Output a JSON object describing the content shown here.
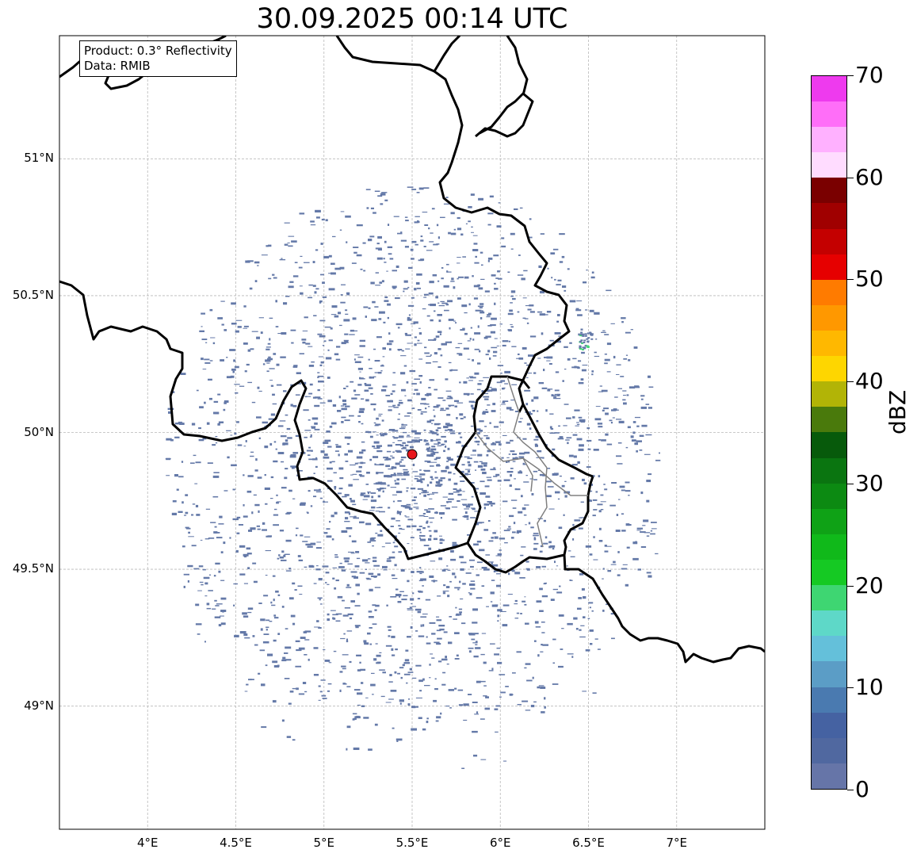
{
  "title": "30.09.2025 00:14 UTC",
  "info": {
    "product": "Product: 0.3° Reflectivity",
    "data": "Data: RMIB"
  },
  "map": {
    "extent_lon": [
      3.5,
      7.5
    ],
    "extent_lat": [
      48.55,
      51.45
    ],
    "lat_ticks": [
      {
        "value": 51.0,
        "label": "51°N"
      },
      {
        "value": 50.5,
        "label": "50.5°N"
      },
      {
        "value": 50.0,
        "label": "50°N"
      },
      {
        "value": 49.5,
        "label": "49.5°N"
      },
      {
        "value": 49.0,
        "label": "49°N"
      }
    ],
    "lon_ticks": [
      {
        "value": 4.0,
        "label": "4°E"
      },
      {
        "value": 4.5,
        "label": "4.5°E"
      },
      {
        "value": 5.0,
        "label": "5°E"
      },
      {
        "value": 5.5,
        "label": "5.5°E"
      },
      {
        "value": 6.0,
        "label": "6°E"
      },
      {
        "value": 6.5,
        "label": "6.5°E"
      },
      {
        "value": 7.0,
        "label": "7°E"
      }
    ],
    "radar_site": {
      "lon": 5.5,
      "lat": 49.92,
      "color": "#e8161b"
    },
    "gridlines": true,
    "echo_color": "#6479a8"
  },
  "colorbar": {
    "unit": "dBZ",
    "min": 0,
    "max": 70,
    "step": 2.5,
    "tick_values": [
      "0",
      "10",
      "20",
      "30",
      "40",
      "50",
      "60",
      "70"
    ],
    "colors": [
      "#6675a8",
      "#5068a0",
      "#4562a2",
      "#4a7ab0",
      "#5b9dc6",
      "#64c0da",
      "#5ed8c8",
      "#3ed672",
      "#15c923",
      "#10b91a",
      "#0fa216",
      "#0c8a12",
      "#0a7510",
      "#075a0b",
      "#4a7a0c",
      "#b2b406",
      "#fed600",
      "#ffb800",
      "#ff9800",
      "#ff7b00",
      "#e60000",
      "#c40000",
      "#a00000",
      "#7a0000",
      "#ffdcff",
      "#ffb1ff",
      "#ff6ef8",
      "#ee3aee"
    ]
  }
}
